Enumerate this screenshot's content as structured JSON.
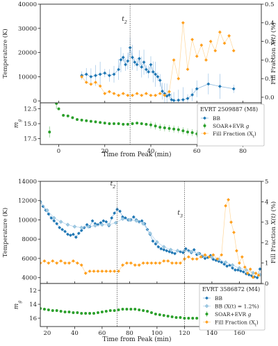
{
  "colors": {
    "bb": "#1f77b4",
    "bb_light": "#9ecae1",
    "fill": "#ff9f1c",
    "soar": "#2ca02c",
    "axis": "#222222",
    "vline": "#555555"
  },
  "panels": [
    {
      "event_label": "EVRT 2509887 (M8)",
      "xlabel": "Time from Peak (min)",
      "top_ylabel": "Temperature (K)",
      "right_ylabel": "Fill Fraction X(t) (%)",
      "bottom_ylabel": "m_g",
      "legend": [
        {
          "label": "BB",
          "kind": "bb"
        },
        {
          "label": "SOAR+EVR g",
          "kind": "soar"
        },
        {
          "label": "Fill Fraction (X_t)",
          "kind": "fill"
        }
      ],
      "vlines": [
        {
          "label": "t2",
          "x": 31
        }
      ]
    },
    {
      "event_label": "EVRT 3586872 (M4)",
      "xlabel": "Time from Peak (min)",
      "top_ylabel": "Temperature (K)",
      "right_ylabel": "Fill Fraction X(t) (%)",
      "bottom_ylabel": "m_g",
      "legend": [
        {
          "label": "BB",
          "kind": "bb"
        },
        {
          "label": "BB (X(t) = 1.2%)",
          "kind": "bb_light"
        },
        {
          "label": "SOAR+EVR g",
          "kind": "soar"
        },
        {
          "label": "Fill Fraction (X_t)",
          "kind": "fill"
        }
      ],
      "vlines": [
        {
          "label": "t2",
          "x": 71
        },
        {
          "label": "t3",
          "x": 120
        }
      ]
    }
  ],
  "chart_data": [
    {
      "type": "scatter",
      "title": "EVRT 2509887 (M8)",
      "xlabel": "Time from Peak (min)",
      "xlim": [
        -8,
        88
      ],
      "xticks": [
        0,
        20,
        40,
        60,
        80
      ],
      "top": {
        "ylabel": "Temperature (K)",
        "ylim": [
          -800,
          40000
        ],
        "yticks": [
          0,
          10000,
          20000,
          30000,
          40000
        ],
        "y2label": "Fill Fraction X(t) (%)",
        "y2lim": [
          -0.03,
          0.5
        ],
        "y2ticks": [
          0.0,
          0.1,
          0.2,
          0.3,
          0.4,
          0.5
        ],
        "series": [
          {
            "name": "BB",
            "x": [
              10,
              12,
              14,
              16,
              18,
              20,
              22,
              24,
              26,
              27,
              28,
              29,
              30,
              31,
              32,
              33,
              34,
              35,
              36,
              37,
              38,
              39,
              40,
              41,
              42,
              43,
              44,
              45,
              46,
              47,
              48,
              49,
              50,
              52,
              54,
              56,
              58,
              60,
              65,
              70,
              76
            ],
            "y": [
              10500,
              11000,
              10000,
              10500,
              11000,
              11500,
              10500,
              11000,
              13000,
              17000,
              18000,
              15000,
              16500,
              22000,
              18000,
              16000,
              15000,
              17500,
              14000,
              16000,
              13000,
              12000,
              15000,
              12000,
              11000,
              10000,
              8500,
              4000,
              3000,
              2000,
              2500,
              500,
              200,
              300,
              500,
              1000,
              2500,
              5000,
              7000,
              6000,
              5000
            ]
          },
          {
            "name": "Fill Fraction (X_t)",
            "axis": "y2",
            "x": [
              10,
              12,
              14,
              16,
              18,
              20,
              22,
              24,
              26,
              28,
              30,
              32,
              34,
              36,
              38,
              40,
              42,
              44,
              46,
              48,
              50,
              52,
              54,
              56,
              58,
              60,
              62,
              64,
              66,
              68,
              70,
              72,
              74,
              76
            ],
            "y": [
              0.11,
              0.08,
              0.07,
              0.08,
              0.06,
              0.02,
              0.03,
              0.02,
              0.01,
              0.02,
              0.01,
              0.01,
              0.02,
              0.01,
              0.02,
              0.01,
              0.01,
              0.02,
              0.01,
              0.03,
              0.2,
              0.1,
              0.4,
              0.15,
              0.31,
              0.22,
              0.28,
              0.2,
              0.3,
              0.25,
              0.35,
              0.29,
              0.33,
              0.25
            ]
          }
        ]
      },
      "bottom": {
        "ylabel": "m_g",
        "ylim": [
          18.5,
          11.5
        ],
        "yticks": [
          12.5,
          15.0,
          17.5
        ],
        "series": [
          {
            "name": "SOAR+EVR g",
            "x": [
              -4,
              -1,
              0,
              2,
              4,
              6,
              8,
              10,
              12,
              14,
              16,
              18,
              20,
              22,
              24,
              26,
              28,
              30,
              32,
              34,
              36,
              38,
              40,
              42,
              44,
              46,
              48,
              50,
              52,
              54,
              56,
              58,
              60,
              62,
              64,
              66,
              68,
              70,
              72,
              76
            ],
            "y": [
              16.4,
              11.6,
              12.5,
              13.6,
              13.7,
              14.0,
              14.3,
              14.4,
              14.5,
              14.6,
              14.7,
              14.8,
              14.9,
              15.0,
              15.0,
              15.0,
              15.1,
              15.1,
              15.0,
              14.9,
              15.0,
              15.1,
              15.2,
              15.4,
              15.6,
              15.7,
              15.8,
              15.9,
              16.0,
              16.2,
              16.4,
              16.5,
              16.7,
              16.9,
              17.0,
              17.1,
              17.1,
              17.3,
              17.4,
              14.3
            ]
          }
        ]
      }
    },
    {
      "type": "scatter",
      "title": "EVRT 3586872 (M4)",
      "xlabel": "Time from Peak (min)",
      "xlim": [
        15,
        176
      ],
      "xticks": [
        20,
        40,
        60,
        80,
        100,
        120,
        140,
        160
      ],
      "top": {
        "ylabel": "Temperature (K)",
        "ylim": [
          3400,
          14000
        ],
        "yticks": [
          4000,
          6000,
          8000,
          10000,
          12000,
          14000
        ],
        "y2label": "Fill Fraction X(t) (%)",
        "y2lim": [
          0,
          5
        ],
        "y2ticks": [
          0,
          1,
          2,
          3,
          4,
          5
        ],
        "series": [
          {
            "name": "BB",
            "x": [
              15,
              17,
              19,
              21,
              23,
              25,
              27,
              29,
              31,
              33,
              35,
              37,
              39,
              41,
              43,
              45,
              47,
              49,
              51,
              53,
              55,
              57,
              59,
              61,
              63,
              65,
              67,
              69,
              71,
              73,
              75,
              77,
              79,
              81,
              83,
              85,
              87,
              89,
              91,
              93,
              95,
              97,
              99,
              101,
              103,
              105,
              107,
              109,
              111,
              113,
              115,
              117,
              119,
              121,
              123,
              125,
              127,
              129,
              131,
              133,
              135,
              137,
              139,
              141,
              143,
              145,
              147,
              149,
              151,
              153,
              155,
              157,
              159,
              161,
              163,
              165,
              167,
              169,
              171,
              173,
              175
            ],
            "y": [
              11900,
              11400,
              11000,
              10600,
              10200,
              9900,
              9600,
              9200,
              9000,
              8800,
              8500,
              8400,
              8500,
              8200,
              8600,
              8900,
              9200,
              9500,
              9300,
              9900,
              9600,
              9500,
              9700,
              9900,
              9800,
              9400,
              10200,
              10700,
              11100,
              10900,
              10300,
              10200,
              10000,
              10000,
              10300,
              10000,
              9800,
              9900,
              9600,
              9000,
              8500,
              7800,
              7500,
              7200,
              7000,
              6900,
              6800,
              6700,
              6600,
              6500,
              6800,
              6700,
              6600,
              7000,
              6800,
              6600,
              6900,
              6400,
              6500,
              6200,
              6000,
              6100,
              6300,
              5900,
              5800,
              5700,
              5600,
              5400,
              5200,
              5300,
              5000,
              4800,
              4800,
              4700,
              4600,
              4400,
              4300,
              4200,
              4100,
              4000,
              4900
            ]
          },
          {
            "name": "BB (X(t) = 1.2%)",
            "x": [
              15,
              20,
              25,
              30,
              35,
              40,
              45,
              50,
              55,
              60,
              65,
              70,
              75,
              80,
              85,
              90,
              95,
              100,
              105,
              110,
              115,
              120,
              125,
              130,
              135,
              140,
              145,
              150,
              155,
              160,
              165,
              170,
              175
            ],
            "y": [
              11800,
              11000,
              10200,
              9800,
              9500,
              9300,
              9200,
              9300,
              9400,
              9500,
              9500,
              9700,
              10100,
              10000,
              9900,
              9600,
              8600,
              7700,
              7200,
              6900,
              6800,
              6800,
              6700,
              6500,
              6300,
              6100,
              5900,
              5600,
              5300,
              5000,
              4800,
              4500,
              4300
            ]
          },
          {
            "name": "Fill Fraction (X_t)",
            "axis": "y2",
            "x": [
              15,
              18,
              21,
              24,
              27,
              30,
              33,
              36,
              39,
              42,
              45,
              48,
              51,
              54,
              57,
              60,
              63,
              66,
              69,
              72,
              75,
              78,
              81,
              84,
              87,
              90,
              93,
              96,
              99,
              102,
              105,
              108,
              111,
              114,
              117,
              120,
              123,
              126,
              129,
              132,
              135,
              138,
              141,
              144,
              147,
              150,
              152,
              154,
              156,
              158,
              160,
              162,
              164,
              166,
              168,
              170,
              172,
              174
            ],
            "y": [
              1.0,
              1.1,
              1.0,
              1.1,
              1.0,
              1.1,
              1.0,
              1.0,
              1.1,
              1.0,
              0.9,
              0.5,
              0.6,
              0.6,
              0.6,
              0.6,
              0.6,
              0.6,
              0.6,
              0.6,
              0.9,
              1.0,
              1.0,
              0.9,
              0.9,
              1.0,
              1.0,
              1.0,
              1.0,
              1.0,
              1.1,
              1.1,
              1.0,
              1.0,
              1.0,
              1.2,
              1.3,
              1.2,
              1.2,
              1.3,
              1.4,
              1.3,
              1.4,
              1.2,
              1.4,
              3.8,
              4.1,
              3.0,
              2.5,
              1.6,
              1.0,
              1.3,
              0.8,
              0.5,
              0.7,
              0.3,
              0.5,
              0.4
            ]
          }
        ]
      },
      "bottom": {
        "ylabel": "m_g",
        "ylim": [
          17.2,
          11.0
        ],
        "yticks": [
          12,
          14,
          16
        ],
        "series": [
          {
            "name": "SOAR+EVR g",
            "x": [
              15,
              18,
              21,
              24,
              27,
              30,
              33,
              36,
              39,
              42,
              45,
              48,
              51,
              54,
              57,
              60,
              63,
              66,
              69,
              72,
              75,
              78,
              81,
              84,
              87,
              90,
              93,
              96,
              99,
              102,
              105,
              108,
              111,
              114,
              117,
              120,
              123,
              126,
              129,
              132,
              135,
              138,
              141,
              144,
              147,
              150,
              153,
              156,
              159,
              162,
              165,
              168,
              171,
              174
            ],
            "y": [
              14.6,
              14.7,
              14.8,
              14.9,
              14.9,
              15.0,
              15.1,
              15.1,
              15.2,
              15.2,
              15.3,
              15.3,
              15.3,
              15.3,
              15.2,
              15.1,
              15.0,
              14.9,
              14.9,
              14.8,
              14.7,
              14.7,
              14.7,
              14.7,
              14.8,
              14.9,
              15.0,
              15.2,
              15.4,
              15.5,
              15.6,
              15.7,
              15.8,
              15.9,
              15.9,
              16.0,
              16.0,
              16.0,
              16.0,
              16.1,
              16.1,
              16.1,
              16.2,
              16.2,
              16.2,
              16.3,
              16.3,
              16.4,
              16.4,
              16.5,
              16.5,
              16.6,
              16.6,
              16.7
            ]
          }
        ]
      }
    }
  ]
}
